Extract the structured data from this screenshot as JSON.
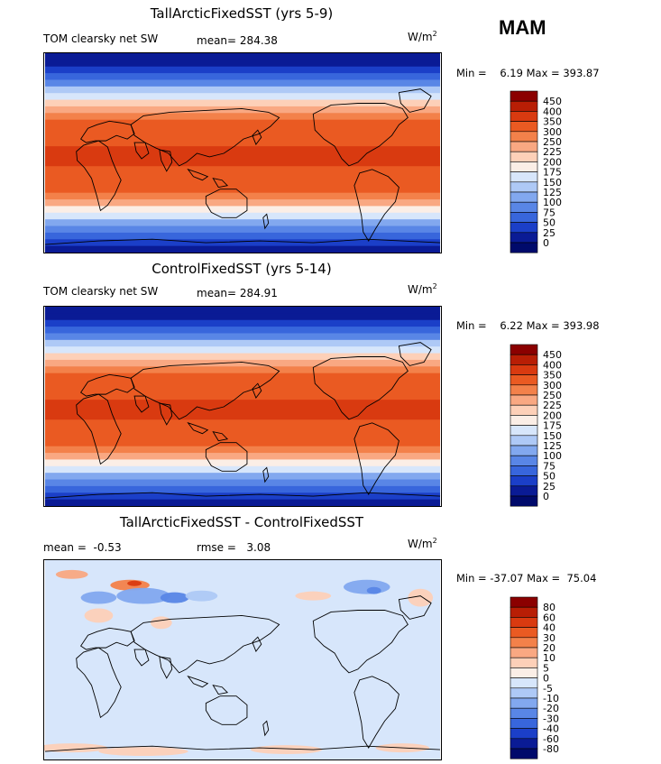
{
  "season": "MAM",
  "chart_data": [
    {
      "type": "heatmap",
      "title": "TallArcticFixedSST (yrs 5-9)",
      "variable": "TOM clearsky net SW",
      "mean_label": "mean=",
      "mean": "284.38",
      "units": "W/m",
      "units_sup": "2",
      "min_label": "Min =",
      "min": "6.19",
      "max_label": "Max =",
      "max": "393.87",
      "colorbar_levels": [
        "450",
        "400",
        "350",
        "300",
        "250",
        "225",
        "200",
        "175",
        "150",
        "125",
        "100",
        "75",
        "50",
        "25",
        "0"
      ],
      "colorbar_colors": [
        "#8b0000",
        "#b81e05",
        "#d93a10",
        "#ea5a22",
        "#f3814a",
        "#f9a882",
        "#fdd0b8",
        "#fbeee6",
        "#d7e6fb",
        "#aec9f6",
        "#82a8ef",
        "#5986e6",
        "#3866dc",
        "#1b3fc8",
        "#0a1b95",
        "#000a6b"
      ],
      "lat_profile_wm2": [
        5,
        15,
        35,
        60,
        95,
        135,
        170,
        205,
        240,
        270,
        300,
        320,
        335,
        345,
        350,
        352,
        350,
        345,
        335,
        320,
        300,
        270,
        235,
        195,
        155,
        115,
        80,
        50,
        25,
        10
      ]
    },
    {
      "type": "heatmap",
      "title": "ControlFixedSST (yrs 5-14)",
      "variable": "TOM clearsky net SW",
      "mean_label": "mean=",
      "mean": "284.91",
      "units": "W/m",
      "units_sup": "2",
      "min_label": "Min =",
      "min": "6.22",
      "max_label": "Max =",
      "max": "393.98",
      "colorbar_levels": [
        "450",
        "400",
        "350",
        "300",
        "250",
        "225",
        "200",
        "175",
        "150",
        "125",
        "100",
        "75",
        "50",
        "25",
        "0"
      ],
      "colorbar_colors": [
        "#8b0000",
        "#b81e05",
        "#d93a10",
        "#ea5a22",
        "#f3814a",
        "#f9a882",
        "#fdd0b8",
        "#fbeee6",
        "#d7e6fb",
        "#aec9f6",
        "#82a8ef",
        "#5986e6",
        "#3866dc",
        "#1b3fc8",
        "#0a1b95",
        "#000a6b"
      ],
      "lat_profile_wm2": [
        5,
        15,
        35,
        60,
        95,
        135,
        170,
        205,
        240,
        270,
        300,
        320,
        335,
        345,
        350,
        352,
        350,
        345,
        335,
        320,
        300,
        270,
        235,
        195,
        155,
        115,
        80,
        50,
        25,
        10
      ]
    },
    {
      "type": "heatmap",
      "title": "TallArcticFixedSST - ControlFixedSST",
      "variable": "",
      "mean_label": "mean =",
      "mean": "-0.53",
      "rmse_label": "rmse =",
      "rmse": "3.08",
      "units": "W/m",
      "units_sup": "2",
      "min_label": "Min =",
      "min": "-37.07",
      "max_label": "Max =",
      "max": "75.04",
      "colorbar_levels": [
        "80",
        "60",
        "40",
        "30",
        "20",
        "10",
        "5",
        "0",
        "-5",
        "-10",
        "-20",
        "-30",
        "-40",
        "-60",
        "-80"
      ],
      "colorbar_colors": [
        "#8b0000",
        "#b81e05",
        "#d93a10",
        "#ea5a22",
        "#f3814a",
        "#f9a882",
        "#fdd0b8",
        "#fbeee6",
        "#d7e6fb",
        "#aec9f6",
        "#82a8ef",
        "#5986e6",
        "#3866dc",
        "#1b3fc8",
        "#0a1b95",
        "#000a6b"
      ],
      "background_value_wm2": -2
    }
  ]
}
